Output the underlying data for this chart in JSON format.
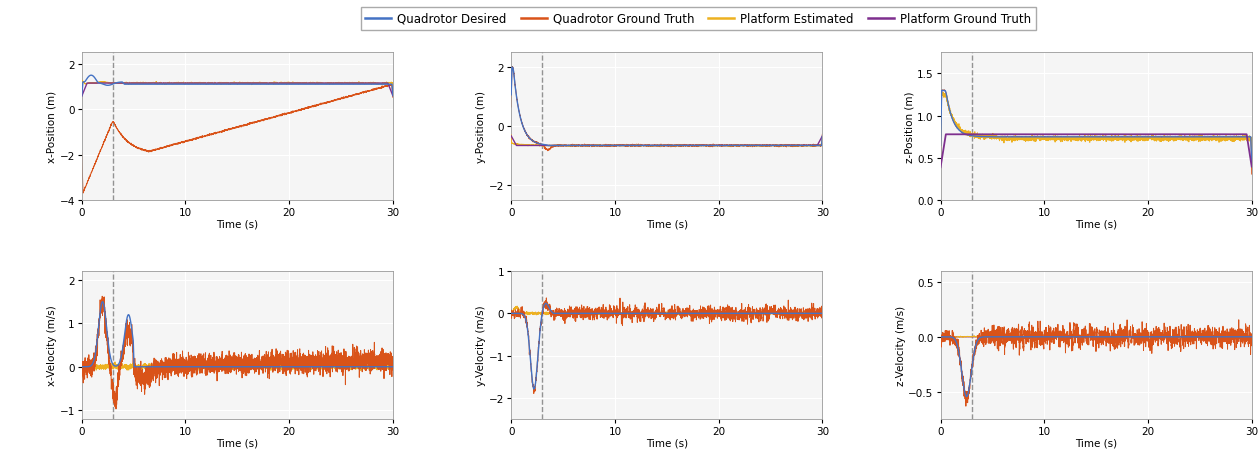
{
  "colors": {
    "quad_desired": "#4472C4",
    "quad_truth": "#D95319",
    "plat_estimated": "#EDB120",
    "plat_truth": "#7E2F8E"
  },
  "legend_labels": [
    "Quadrotor Desired",
    "Quadrotor Ground Truth",
    "Platform Estimated",
    "Platform Ground Truth"
  ],
  "dashed_line_x": 3.0,
  "background_color": "#f5f5f5",
  "grid_color": "#ffffff",
  "subplots": {
    "x_pos": {
      "ylabel": "x-Position (m)",
      "xlabel": "Time (s)",
      "ylim": [
        -4,
        2.5
      ],
      "yticks": [
        -4,
        -2,
        0,
        2
      ]
    },
    "y_pos": {
      "ylabel": "y-Position (m)",
      "xlabel": "Time (s)",
      "ylim": [
        -2.5,
        2.5
      ],
      "yticks": [
        -2,
        0,
        2
      ]
    },
    "z_pos": {
      "ylabel": "z-Position (m)",
      "xlabel": "Time (s)",
      "ylim": [
        0,
        1.75
      ],
      "yticks": [
        0.0,
        0.5,
        1.0,
        1.5
      ]
    },
    "x_vel": {
      "ylabel": "x-Velocity (m/s)",
      "xlabel": "Time (s)",
      "ylim": [
        -1.2,
        2.2
      ],
      "yticks": [
        -1,
        0,
        1,
        2
      ]
    },
    "y_vel": {
      "ylabel": "y-Velocity (m/s)",
      "xlabel": "Time (s)",
      "ylim": [
        -2.5,
        1.0
      ],
      "yticks": [
        -2,
        -1,
        0,
        1
      ]
    },
    "z_vel": {
      "ylabel": "z-Velocity (m/s)",
      "xlabel": "Time (s)",
      "ylim": [
        -0.75,
        0.6
      ],
      "yticks": [
        -0.5,
        0.0,
        0.5
      ]
    }
  }
}
